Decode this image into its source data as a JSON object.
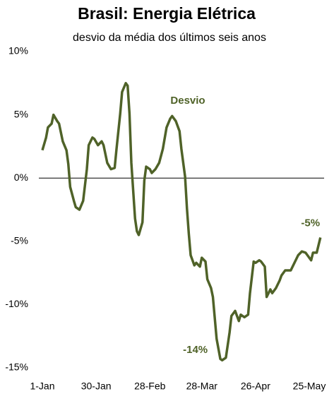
{
  "chart_data": {
    "type": "line",
    "title": "Brasil: Energia Elétrica",
    "subtitle": "desvio da média dos últimos seis anos",
    "annotations": [
      "-14%",
      "-5%"
    ],
    "xlim": [
      0,
      152
    ],
    "xticks": [
      {
        "value": 0,
        "label": "1-Jan"
      },
      {
        "value": 29,
        "label": "30-Jan"
      },
      {
        "value": 58,
        "label": "28-Feb"
      },
      {
        "value": 86,
        "label": "28-Mar"
      },
      {
        "value": 115,
        "label": "26-Apr"
      },
      {
        "value": 144,
        "label": "25-May"
      }
    ],
    "ylim": [
      -15,
      10
    ],
    "yticks": [
      {
        "value": 10,
        "label": "10%"
      },
      {
        "value": 5,
        "label": "5%"
      },
      {
        "value": 0,
        "label": "0%"
      },
      {
        "value": -5,
        "label": "-5%"
      },
      {
        "value": -10,
        "label": "-10%"
      },
      {
        "value": -15,
        "label": "-15%"
      }
    ],
    "grid": false,
    "x": [
      0,
      2,
      3,
      5,
      6,
      8,
      9,
      11,
      13,
      14,
      15,
      17,
      18,
      20,
      22,
      24,
      25,
      27,
      28,
      30,
      32,
      33,
      35,
      37,
      39,
      40,
      42,
      43,
      45,
      46,
      47,
      48,
      50,
      51,
      52,
      54,
      55,
      56,
      58,
      59,
      61,
      63,
      65,
      67,
      69,
      70,
      72,
      74,
      75,
      77,
      78,
      79,
      80,
      82,
      83,
      85,
      86,
      88,
      89,
      91,
      92,
      94,
      96,
      97,
      99,
      101,
      102,
      104,
      106,
      107,
      109,
      111,
      112,
      114,
      115,
      117,
      118,
      120,
      121,
      123,
      124,
      126,
      128,
      129,
      131,
      133,
      134,
      136,
      138,
      140,
      142,
      143,
      145,
      146,
      148,
      149,
      150
    ],
    "series": [
      {
        "name": "Desvio",
        "color": "#4f6228",
        "values": [
          2.2,
          3.2,
          4.0,
          4.3,
          5.0,
          4.5,
          4.3,
          2.9,
          2.2,
          1.1,
          -0.7,
          -1.8,
          -2.3,
          -2.5,
          -1.8,
          0.7,
          2.6,
          3.2,
          3.1,
          2.6,
          2.9,
          2.6,
          1.2,
          0.7,
          0.8,
          2.3,
          5.1,
          6.8,
          7.5,
          7.3,
          5.1,
          1.2,
          -3.2,
          -4.2,
          -4.5,
          -3.5,
          -0.2,
          0.9,
          0.7,
          0.4,
          0.7,
          1.2,
          2.3,
          4.0,
          4.7,
          4.9,
          4.5,
          3.7,
          2.3,
          0.1,
          -2.4,
          -4.4,
          -6.1,
          -6.9,
          -6.7,
          -7.0,
          -6.3,
          -6.6,
          -8.0,
          -8.7,
          -9.4,
          -12.7,
          -14.3,
          -14.4,
          -14.2,
          -12.2,
          -10.9,
          -10.5,
          -11.3,
          -10.8,
          -11.0,
          -10.8,
          -9.1,
          -6.6,
          -6.7,
          -6.5,
          -6.6,
          -7.0,
          -9.4,
          -8.8,
          -9.1,
          -8.7,
          -8.1,
          -7.7,
          -7.3,
          -7.3,
          -7.3,
          -6.7,
          -6.1,
          -5.8,
          -5.9,
          -6.1,
          -6.5,
          -5.9,
          -5.9,
          -5.3,
          -4.7
        ]
      }
    ]
  }
}
